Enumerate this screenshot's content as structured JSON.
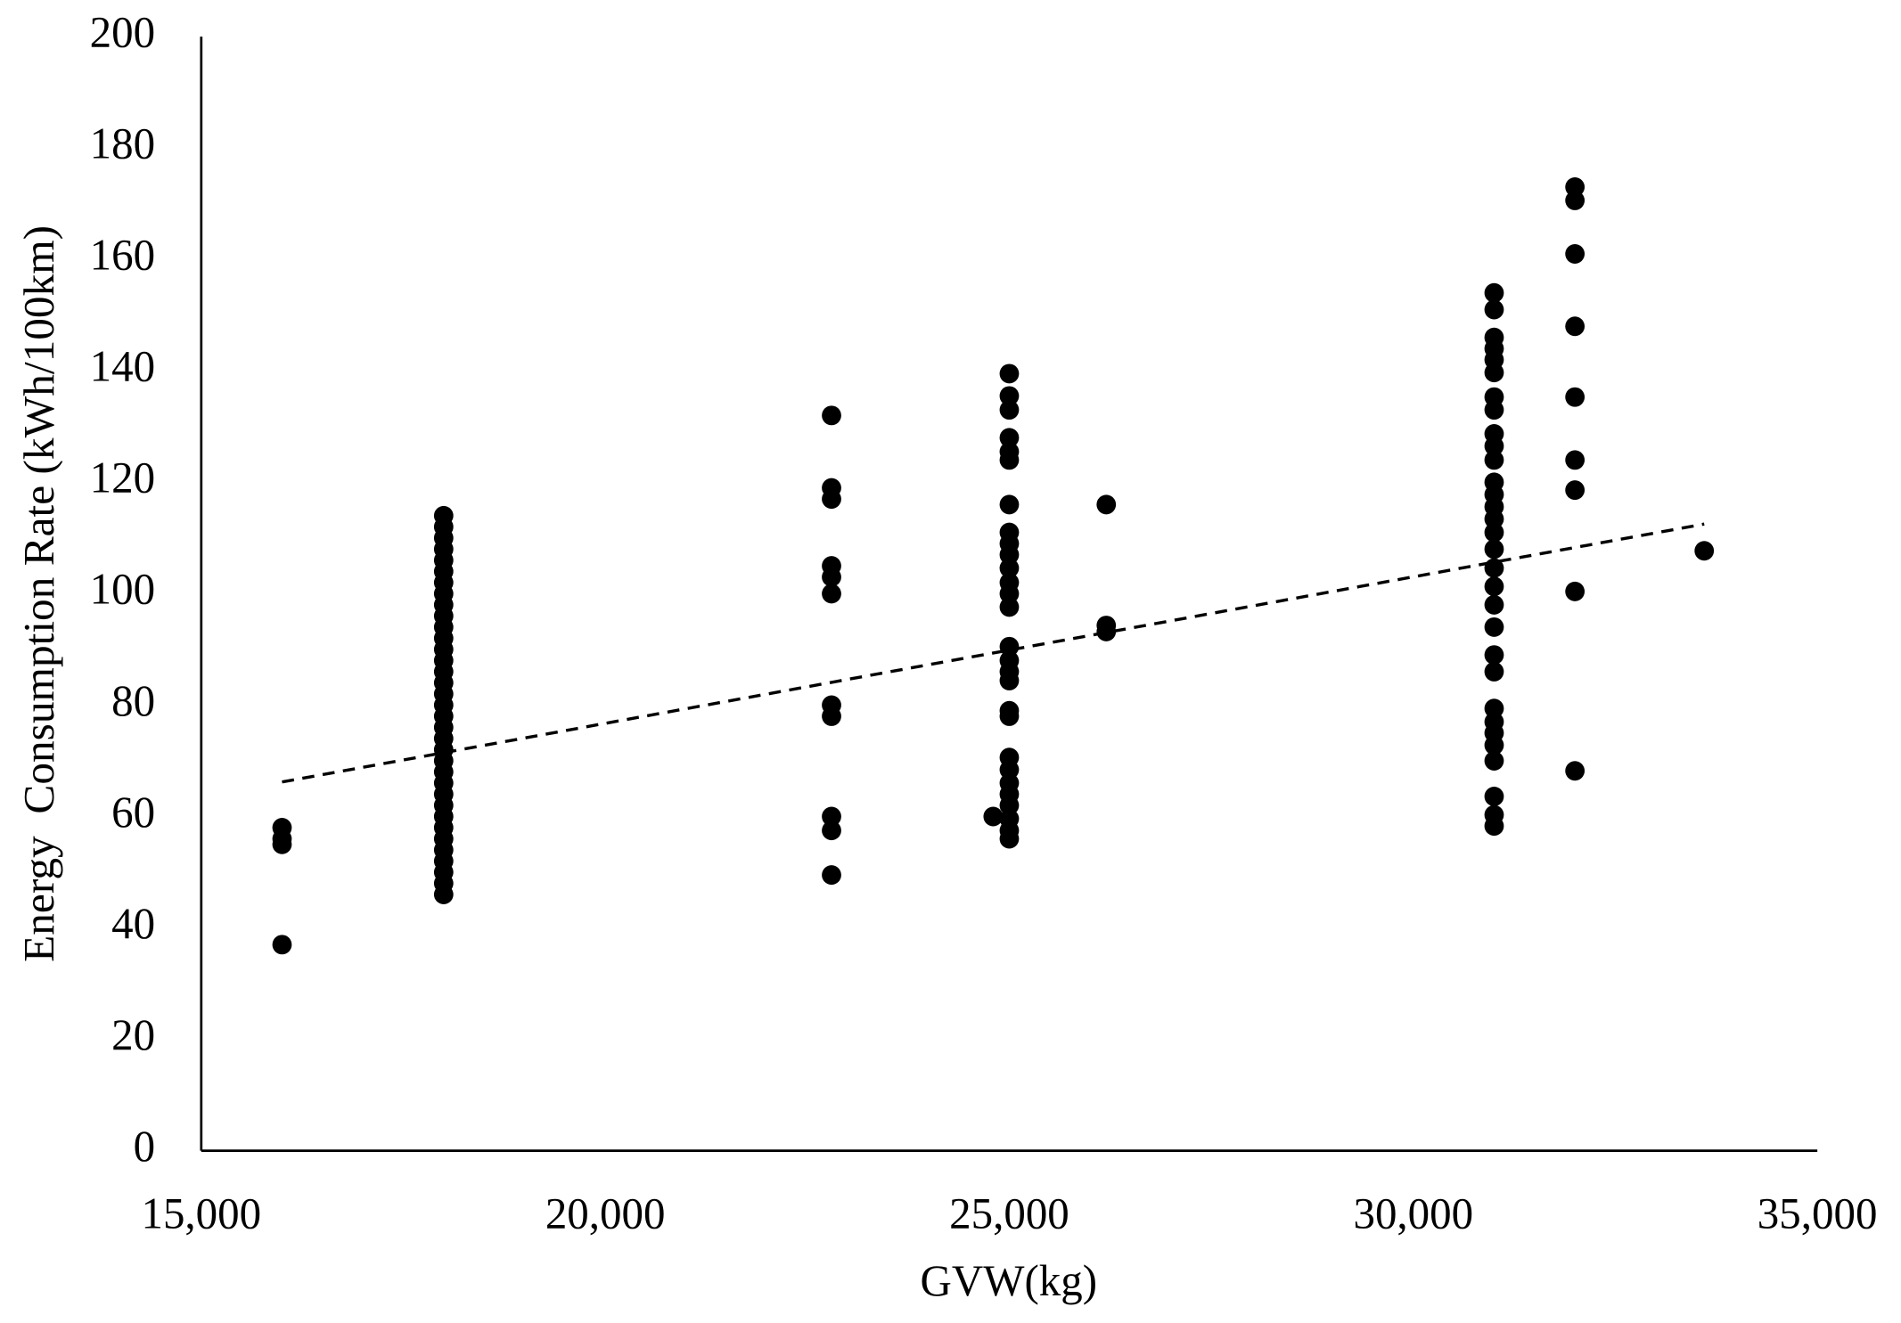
{
  "chart_data": {
    "type": "scatter",
    "xlabel": "GVW(kg)",
    "ylabel": "Energy  Consumption Rate (kWh/100km)",
    "xlim": [
      15000,
      35000
    ],
    "ylim": [
      0,
      200
    ],
    "xticks": [
      {
        "value": 15000,
        "label": "15,000"
      },
      {
        "value": 20000,
        "label": "20,000"
      },
      {
        "value": 25000,
        "label": "25,000"
      },
      {
        "value": 30000,
        "label": "30,000"
      },
      {
        "value": 35000,
        "label": "35,000"
      }
    ],
    "yticks": [
      0,
      20,
      40,
      60,
      80,
      100,
      120,
      140,
      160,
      180,
      200
    ],
    "grid": false,
    "series": [
      {
        "color": "#000000",
        "x": [
          16000,
          16000,
          16000,
          16000,
          18000,
          18000,
          18000,
          18000,
          18000,
          18000,
          18000,
          18000,
          18000,
          18000,
          18000,
          18000,
          18000,
          18000,
          18000,
          18000,
          18000,
          18000,
          18000,
          18000,
          18000,
          18000,
          18000,
          18000,
          18000,
          18000,
          18000,
          18000,
          18000,
          18000,
          18000,
          18000,
          18000,
          18000,
          18000,
          22800,
          22800,
          22800,
          22800,
          22800,
          22800,
          22800,
          22800,
          22800,
          22800,
          22800,
          24800,
          25000,
          25000,
          25000,
          25000,
          25000,
          25000,
          25000,
          25000,
          25000,
          25000,
          25000,
          25000,
          25000,
          25000,
          25000,
          25000,
          25000,
          25000,
          25000,
          25000,
          25000,
          25000,
          25000,
          25000,
          25000,
          25000,
          25000,
          25000,
          26200,
          26200,
          26200,
          31000,
          31000,
          31000,
          31000,
          31000,
          31000,
          31000,
          31000,
          31000,
          31000,
          31000,
          31000,
          31000,
          31000,
          31000,
          31000,
          31000,
          31000,
          31000,
          31000,
          31000,
          31000,
          31000,
          31000,
          31000,
          31000,
          31000,
          31000,
          31000,
          31000,
          31000,
          32000,
          32000,
          32000,
          32000,
          32000,
          32000,
          32000,
          32000,
          32000,
          33600
        ],
        "values": [
          58,
          56,
          55,
          37,
          46,
          48,
          50,
          52,
          54,
          56,
          58,
          60,
          62,
          64,
          66,
          68,
          70,
          72,
          74,
          76,
          78,
          80,
          82,
          84,
          86,
          88,
          90,
          92,
          94,
          96,
          98,
          100,
          102,
          104,
          106,
          108,
          110,
          112,
          114,
          132,
          119,
          117,
          105,
          103,
          100,
          80,
          78,
          60,
          57.5,
          49.5,
          60,
          139.5,
          135.5,
          133,
          128,
          125.5,
          124,
          116,
          111,
          109,
          107,
          104.6,
          102,
          100,
          97.6,
          90.5,
          88,
          86,
          84.4,
          79,
          78,
          70.6,
          68.4,
          66,
          64,
          62,
          59.6,
          57.5,
          56,
          116,
          94.3,
          93.2,
          154,
          151,
          146,
          144,
          142,
          139.7,
          135.3,
          133,
          128.7,
          126.5,
          124,
          120,
          117.8,
          115.6,
          113.4,
          111,
          108,
          104.6,
          101.3,
          98,
          94,
          89,
          86,
          79.4,
          77,
          75,
          72.8,
          70,
          63.6,
          60.3,
          58.3,
          173,
          170.6,
          161,
          148,
          135.3,
          124,
          118.6,
          100.4,
          68.2,
          107.7
        ]
      }
    ],
    "trendline": {
      "x": [
        16000,
        33600
      ],
      "values": [
        66.2,
        112.5
      ]
    }
  }
}
